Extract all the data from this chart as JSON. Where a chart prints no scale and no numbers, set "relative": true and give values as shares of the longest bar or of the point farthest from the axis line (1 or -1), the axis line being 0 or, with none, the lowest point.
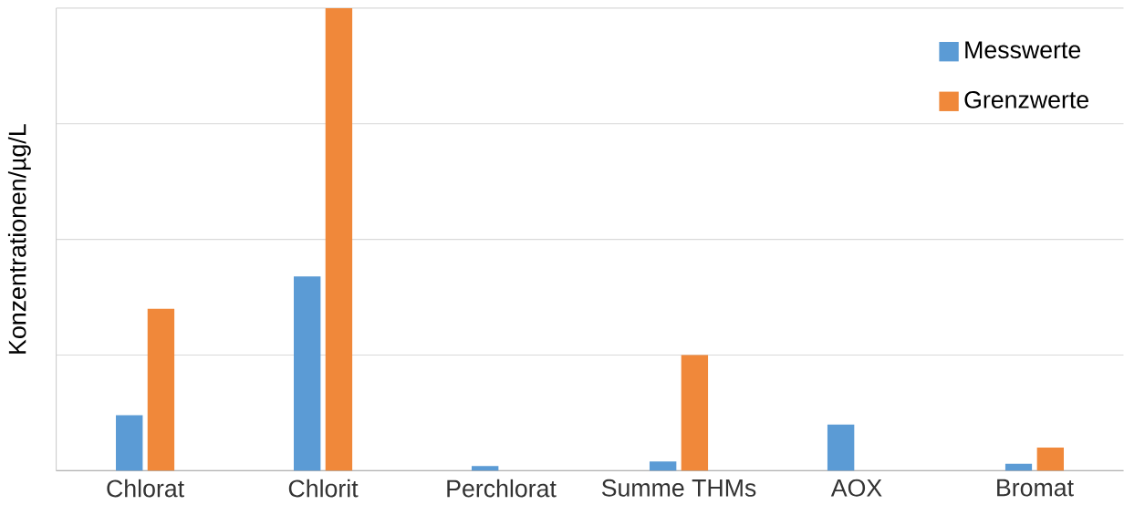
{
  "chart_data": {
    "type": "bar",
    "relative": true,
    "ylabel": "Konzentrationen/µg/L",
    "categories": [
      "Chlorat",
      "Chlorit",
      "Perchlorat",
      "Summe THMs",
      "AOX",
      "Bromat"
    ],
    "series": [
      {
        "name": "Messwerte",
        "color": "#5b9bd5",
        "values": [
          0.12,
          0.42,
          0.01,
          0.02,
          0.1,
          0.015
        ]
      },
      {
        "name": "Grenzwerte",
        "color": "#f0883a",
        "values": [
          0.35,
          1,
          null,
          0.25,
          null,
          0.05
        ]
      }
    ],
    "grid": "y",
    "legend": "top right"
  }
}
